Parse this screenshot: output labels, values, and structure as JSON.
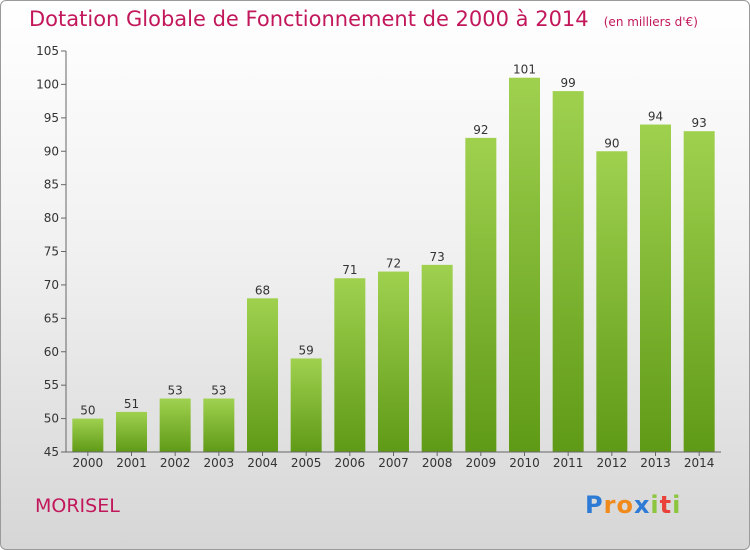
{
  "title": "Dotation Globale de Fonctionnement de 2000 à 2014",
  "unit_note": "(en milliers d'€)",
  "commune": "MORISEL",
  "logo": {
    "letters": [
      "P",
      "r",
      "o",
      "x",
      "i",
      "t",
      "i"
    ],
    "colors": [
      "#2e7bd6",
      "#f08a1c",
      "#f08a1c",
      "#2e7bd6",
      "#8cc63f",
      "#e8423b",
      "#8cc63f"
    ]
  },
  "chart_data": {
    "type": "bar",
    "categories": [
      "2000",
      "2001",
      "2002",
      "2003",
      "2004",
      "2005",
      "2006",
      "2007",
      "2008",
      "2009",
      "2010",
      "2011",
      "2012",
      "2013",
      "2014"
    ],
    "values": [
      50,
      51,
      53,
      53,
      68,
      59,
      71,
      72,
      73,
      92,
      101,
      99,
      90,
      94,
      93
    ],
    "data_labels": [
      "50",
      "51",
      "53",
      "53",
      "68",
      "59",
      "71",
      "72",
      "73",
      "92",
      "101",
      "99",
      "90",
      "94",
      "93"
    ],
    "y_ticks": [
      "45",
      "50",
      "55",
      "60",
      "65",
      "70",
      "75",
      "80",
      "85",
      "90",
      "95",
      "100",
      "105"
    ],
    "ylim": [
      45,
      105
    ],
    "title": "Dotation Globale de Fonctionnement de 2000 à 2014",
    "xlabel": "",
    "ylabel": "",
    "grid": false,
    "legend": "none",
    "bar_color_top": "#9fd14f",
    "bar_color_bottom": "#5f9a16"
  }
}
